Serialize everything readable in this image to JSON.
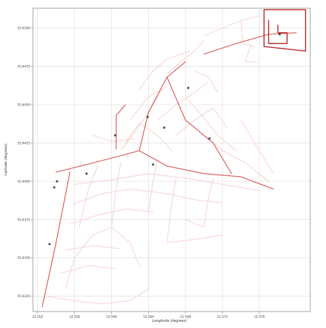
{
  "chart_data": {
    "type": "line",
    "title": "",
    "xlabel": "Longitude (degrees)",
    "ylabel": "Latitude (degrees)",
    "xlim": [
      12.5515,
      12.5815
    ],
    "ylim": [
      55.6315,
      55.6513
    ],
    "x_ticks": [
      {
        "value": 12.552,
        "label": "12.552"
      },
      {
        "value": 12.556,
        "label": "12.556"
      },
      {
        "value": 12.56,
        "label": "12.560"
      },
      {
        "value": 12.564,
        "label": "12.564"
      },
      {
        "value": 12.568,
        "label": "12.568"
      },
      {
        "value": 12.572,
        "label": "12.572"
      },
      {
        "value": 12.576,
        "label": "12.576"
      }
    ],
    "y_ticks": [
      {
        "value": 55.6325,
        "label": "55.6325"
      },
      {
        "value": 55.635,
        "label": "55.6350"
      },
      {
        "value": 55.6375,
        "label": "55.6375"
      },
      {
        "value": 55.64,
        "label": "55.6400"
      },
      {
        "value": 55.6425,
        "label": "55.6425"
      },
      {
        "value": 55.645,
        "label": "55.6450"
      },
      {
        "value": 55.6475,
        "label": "55.6475"
      },
      {
        "value": 55.65,
        "label": "55.6500"
      }
    ],
    "grid": true,
    "legend": "none",
    "colors": {
      "network": "#f7cfcf",
      "route": "#d84a4a",
      "route_dark": "#b31f1f",
      "node": "#444444",
      "grid": "#dddddd",
      "axis": "#888888"
    },
    "series": [
      {
        "points": [
          [
            12.5525,
            55.6318
          ],
          [
            12.554,
            55.636
          ],
          [
            12.5555,
            55.6406
          ]
        ]
      },
      {
        "points": [
          [
            12.554,
            55.6406
          ],
          [
            12.558,
            55.6412
          ],
          [
            12.563,
            55.642
          ],
          [
            12.566,
            55.641
          ],
          [
            12.57,
            55.6405
          ],
          [
            12.574,
            55.6403
          ],
          [
            12.5775,
            55.6395
          ]
        ]
      },
      {
        "points": [
          [
            12.5605,
            55.6421
          ],
          [
            12.5605,
            55.6443
          ],
          [
            12.5615,
            55.645
          ]
        ]
      },
      {
        "points": [
          [
            12.563,
            55.642
          ],
          [
            12.564,
            55.6445
          ],
          [
            12.566,
            55.6468
          ],
          [
            12.568,
            55.6478
          ]
        ]
      },
      {
        "points": [
          [
            12.566,
            55.6468
          ],
          [
            12.568,
            55.644
          ],
          [
            12.571,
            55.6425
          ],
          [
            12.573,
            55.6405
          ]
        ]
      },
      {
        "points": [
          [
            12.57,
            55.6483
          ],
          [
            12.5735,
            55.649
          ],
          [
            12.577,
            55.6496
          ],
          [
            12.58,
            55.6497
          ]
        ]
      },
      {
        "points": [
          [
            12.577,
            55.6505
          ],
          [
            12.577,
            55.649
          ],
          [
            12.579,
            55.649
          ],
          [
            12.579,
            55.6497
          ],
          [
            12.578,
            55.6497
          ],
          [
            12.578,
            55.6502
          ]
        ]
      },
      {
        "points": [
          [
            12.5765,
            55.6512
          ],
          [
            12.5765,
            55.6488
          ],
          [
            12.581,
            55.6485
          ],
          [
            12.581,
            55.6512
          ],
          [
            12.5765,
            55.6512
          ]
        ]
      }
    ],
    "network": [
      [
        [
          12.553,
          55.6325
        ],
        [
          12.556,
          55.6322
        ],
        [
          12.559,
          55.632
        ],
        [
          12.562,
          55.6322
        ],
        [
          12.564,
          55.633
        ],
        [
          12.564,
          55.636
        ]
      ],
      [
        [
          12.555,
          55.633
        ],
        [
          12.556,
          55.635
        ],
        [
          12.558,
          55.6365
        ],
        [
          12.56,
          55.637
        ],
        [
          12.562,
          55.636
        ],
        [
          12.563,
          55.6345
        ]
      ],
      [
        [
          12.5545,
          55.634
        ],
        [
          12.5575,
          55.6345
        ],
        [
          12.5605,
          55.6343
        ]
      ],
      [
        [
          12.555,
          55.6355
        ],
        [
          12.558,
          55.6358
        ],
        [
          12.561,
          55.6356
        ]
      ],
      [
        [
          12.5555,
          55.6372
        ],
        [
          12.5585,
          55.6378
        ],
        [
          12.5615,
          55.6382
        ],
        [
          12.5645,
          55.638
        ]
      ],
      [
        [
          12.5558,
          55.6385
        ],
        [
          12.559,
          55.6392
        ],
        [
          12.562,
          55.6395
        ],
        [
          12.566,
          55.6392
        ],
        [
          12.569,
          55.6388
        ],
        [
          12.572,
          55.6386
        ]
      ],
      [
        [
          12.556,
          55.6398
        ],
        [
          12.56,
          55.6401
        ],
        [
          12.564,
          55.6405
        ],
        [
          12.568,
          55.6402
        ],
        [
          12.572,
          55.6398
        ],
        [
          12.576,
          55.6394
        ]
      ],
      [
        [
          12.5565,
          55.637
        ],
        [
          12.5575,
          55.6395
        ],
        [
          12.5585,
          55.641
        ]
      ],
      [
        [
          12.56,
          55.637
        ],
        [
          12.5605,
          55.6395
        ],
        [
          12.561,
          55.6412
        ]
      ],
      [
        [
          12.564,
          55.638
        ],
        [
          12.5645,
          55.64
        ],
        [
          12.565,
          55.6415
        ]
      ],
      [
        [
          12.566,
          55.636
        ],
        [
          12.5665,
          55.6385
        ],
        [
          12.567,
          55.6402
        ]
      ],
      [
        [
          12.57,
          55.637
        ],
        [
          12.5705,
          55.639
        ],
        [
          12.571,
          55.6402
        ]
      ],
      [
        [
          12.566,
          55.636
        ],
        [
          12.569,
          55.6362
        ],
        [
          12.572,
          55.6365
        ]
      ],
      [
        [
          12.568,
          55.6375
        ],
        [
          12.57,
          55.637
        ]
      ],
      [
        [
          12.561,
          55.642
        ],
        [
          12.5625,
          55.6432
        ],
        [
          12.564,
          55.6445
        ],
        [
          12.5655,
          55.646
        ]
      ],
      [
        [
          12.562,
          55.644
        ],
        [
          12.564,
          55.6455
        ],
        [
          12.566,
          55.6462
        ]
      ],
      [
        [
          12.5615,
          55.6425
        ],
        [
          12.563,
          55.6438
        ],
        [
          12.565,
          55.643
        ],
        [
          12.5665,
          55.642
        ]
      ],
      [
        [
          12.563,
          55.646
        ],
        [
          12.5645,
          55.6472
        ],
        [
          12.566,
          55.648
        ],
        [
          12.5685,
          55.6485
        ]
      ],
      [
        [
          12.565,
          55.644
        ],
        [
          12.567,
          55.645
        ],
        [
          12.569,
          55.6458
        ],
        [
          12.5705,
          55.6465
        ]
      ],
      [
        [
          12.567,
          55.643
        ],
        [
          12.569,
          55.644
        ],
        [
          12.571,
          55.6448
        ],
        [
          12.5725,
          55.6435
        ]
      ],
      [
        [
          12.568,
          55.6455
        ],
        [
          12.5695,
          55.6445
        ],
        [
          12.5715,
          55.643
        ],
        [
          12.5735,
          55.642
        ]
      ],
      [
        [
          12.57,
          55.643
        ],
        [
          12.572,
          55.642
        ],
        [
          12.5745,
          55.6412
        ],
        [
          12.577,
          55.64
        ]
      ],
      [
        [
          12.566,
          55.647
        ],
        [
          12.5675,
          55.6478
        ],
        [
          12.569,
          55.6485
        ],
        [
          12.57,
          55.6492
        ]
      ],
      [
        [
          12.569,
          55.6472
        ],
        [
          12.5705,
          55.6468
        ],
        [
          12.5715,
          55.6458
        ]
      ],
      [
        [
          12.574,
          55.644
        ],
        [
          12.576,
          55.642
        ],
        [
          12.5775,
          55.6405
        ]
      ],
      [
        [
          12.57,
          55.6495
        ],
        [
          12.572,
          55.65
        ],
        [
          12.574,
          55.6505
        ],
        [
          12.576,
          55.6508
        ]
      ],
      [
        [
          12.574,
          55.6505
        ],
        [
          12.5742,
          55.649
        ],
        [
          12.5755,
          55.6488
        ]
      ],
      [
        [
          12.575,
          55.6488
        ],
        [
          12.5745,
          55.6478
        ],
        [
          12.5758,
          55.6478
        ]
      ],
      [
        [
          12.558,
          55.643
        ],
        [
          12.56,
          55.6426
        ],
        [
          12.5625,
          55.6428
        ]
      ]
    ],
    "nodes": [
      {
        "x": 12.5533,
        "y": 55.6359
      },
      {
        "x": 12.5538,
        "y": 55.6396
      },
      {
        "x": 12.5541,
        "y": 55.64
      },
      {
        "x": 12.5573,
        "y": 55.6405
      },
      {
        "x": 12.5604,
        "y": 55.643
      },
      {
        "x": 12.5639,
        "y": 55.6442
      },
      {
        "x": 12.5645,
        "y": 55.6411
      },
      {
        "x": 12.5657,
        "y": 55.6435
      },
      {
        "x": 12.5683,
        "y": 55.6461
      },
      {
        "x": 12.5706,
        "y": 55.6428
      },
      {
        "x": 12.5782,
        "y": 55.6496
      }
    ]
  }
}
